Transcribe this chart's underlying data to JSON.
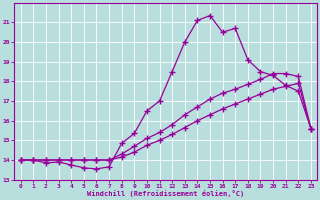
{
  "xlabel": "Windchill (Refroidissement éolien,°C)",
  "xlim": [
    -0.5,
    23.5
  ],
  "ylim": [
    13,
    22
  ],
  "yticks": [
    13,
    14,
    15,
    16,
    17,
    18,
    19,
    20,
    21
  ],
  "xticks": [
    0,
    1,
    2,
    3,
    4,
    5,
    6,
    7,
    8,
    9,
    10,
    11,
    12,
    13,
    14,
    15,
    16,
    17,
    18,
    19,
    20,
    21,
    22,
    23
  ],
  "background_color": "#b8dede",
  "line_color": "#990099",
  "line1_x": [
    0,
    1,
    2,
    3,
    4,
    5,
    6,
    7,
    8,
    9,
    10,
    11,
    12,
    13,
    14,
    15,
    16,
    17,
    18,
    19,
    20,
    21,
    22,
    23
  ],
  "line1_y": [
    14.0,
    14.0,
    13.85,
    13.9,
    13.75,
    13.6,
    13.55,
    13.65,
    14.85,
    15.35,
    16.5,
    17.0,
    18.5,
    20.0,
    21.1,
    21.35,
    20.5,
    20.7,
    19.1,
    18.5,
    18.3,
    17.8,
    17.5,
    15.6
  ],
  "line2_x": [
    0,
    1,
    2,
    3,
    4,
    5,
    6,
    7,
    8,
    9,
    10,
    11,
    12,
    13,
    14,
    15,
    16,
    17,
    18,
    19,
    20,
    21,
    22,
    23
  ],
  "line2_y": [
    14.0,
    14.0,
    14.0,
    14.0,
    14.0,
    14.0,
    14.0,
    14.0,
    14.3,
    14.7,
    15.1,
    15.4,
    15.8,
    16.3,
    16.7,
    17.1,
    17.4,
    17.6,
    17.85,
    18.1,
    18.4,
    18.4,
    18.25,
    15.6
  ],
  "line3_x": [
    0,
    1,
    2,
    3,
    4,
    5,
    6,
    7,
    8,
    9,
    10,
    11,
    12,
    13,
    14,
    15,
    16,
    17,
    18,
    19,
    20,
    21,
    22,
    23
  ],
  "line3_y": [
    14.0,
    14.0,
    14.0,
    14.0,
    14.0,
    14.0,
    14.0,
    14.0,
    14.15,
    14.4,
    14.75,
    15.0,
    15.3,
    15.65,
    16.0,
    16.3,
    16.6,
    16.85,
    17.1,
    17.35,
    17.6,
    17.75,
    17.9,
    15.6
  ]
}
